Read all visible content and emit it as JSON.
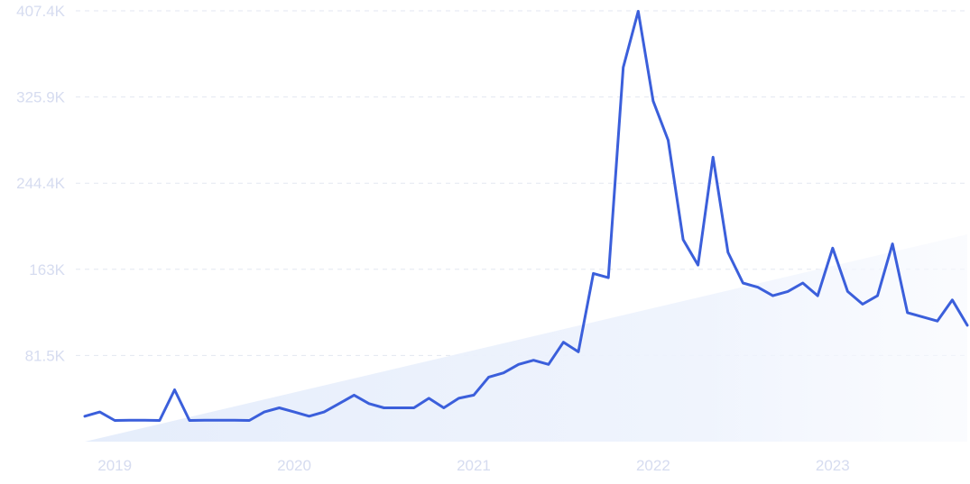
{
  "chart_data": {
    "type": "line",
    "title": "",
    "xlabel": "",
    "ylabel": "",
    "grid": true,
    "legend": "none",
    "ylim": [
      0,
      407400
    ],
    "y_ticks": [
      {
        "value": 81500,
        "label": "81.5K"
      },
      {
        "value": 163000,
        "label": "163K"
      },
      {
        "value": 244400,
        "label": "244.4K"
      },
      {
        "value": 325900,
        "label": "325.9K"
      },
      {
        "value": 407400,
        "label": "407.4K"
      }
    ],
    "xlim": [
      "2018-11",
      "2023-10"
    ],
    "x_ticks": [
      {
        "value": "2019-01",
        "label": "2019"
      },
      {
        "value": "2020-01",
        "label": "2020"
      },
      {
        "value": "2021-01",
        "label": "2021"
      },
      {
        "value": "2022-01",
        "label": "2022"
      },
      {
        "value": "2023-01",
        "label": "2023"
      }
    ],
    "series": [
      {
        "color": "#3b5fdb",
        "x": [
          "2018-11",
          "2018-12",
          "2019-01",
          "2019-02",
          "2019-03",
          "2019-04",
          "2019-05",
          "2019-06",
          "2019-07",
          "2019-08",
          "2019-09",
          "2019-10",
          "2019-11",
          "2019-12",
          "2020-01",
          "2020-02",
          "2020-03",
          "2020-04",
          "2020-05",
          "2020-06",
          "2020-07",
          "2020-08",
          "2020-09",
          "2020-10",
          "2020-11",
          "2020-12",
          "2021-01",
          "2021-02",
          "2021-03",
          "2021-04",
          "2021-05",
          "2021-06",
          "2021-07",
          "2021-08",
          "2021-09",
          "2021-10",
          "2021-11",
          "2021-12",
          "2022-01",
          "2022-02",
          "2022-03",
          "2022-04",
          "2022-05",
          "2022-06",
          "2022-07",
          "2022-08",
          "2022-09",
          "2022-10",
          "2022-11",
          "2022-12",
          "2023-01",
          "2023-02",
          "2023-03",
          "2023-04",
          "2023-05",
          "2023-06",
          "2023-07",
          "2023-08",
          "2023-09",
          "2023-10"
        ],
        "values": [
          24000,
          28000,
          20000,
          20300,
          20300,
          20000,
          49000,
          20000,
          20300,
          20300,
          20300,
          20000,
          28000,
          32000,
          28000,
          24000,
          28000,
          36000,
          44000,
          36000,
          32000,
          32000,
          32000,
          41000,
          32000,
          41000,
          44000,
          61000,
          65000,
          73000,
          77000,
          73000,
          94000,
          85000,
          159000,
          155000,
          354000,
          407000,
          322000,
          285000,
          191000,
          167000,
          269000,
          179000,
          150000,
          146000,
          138000,
          142000,
          150000,
          138000,
          183000,
          142000,
          130000,
          138000,
          187000,
          122000,
          118000,
          114000,
          134000,
          110000
        ]
      }
    ],
    "trend": {
      "color": "#e8effc",
      "start": 0,
      "end": 196000
    }
  }
}
